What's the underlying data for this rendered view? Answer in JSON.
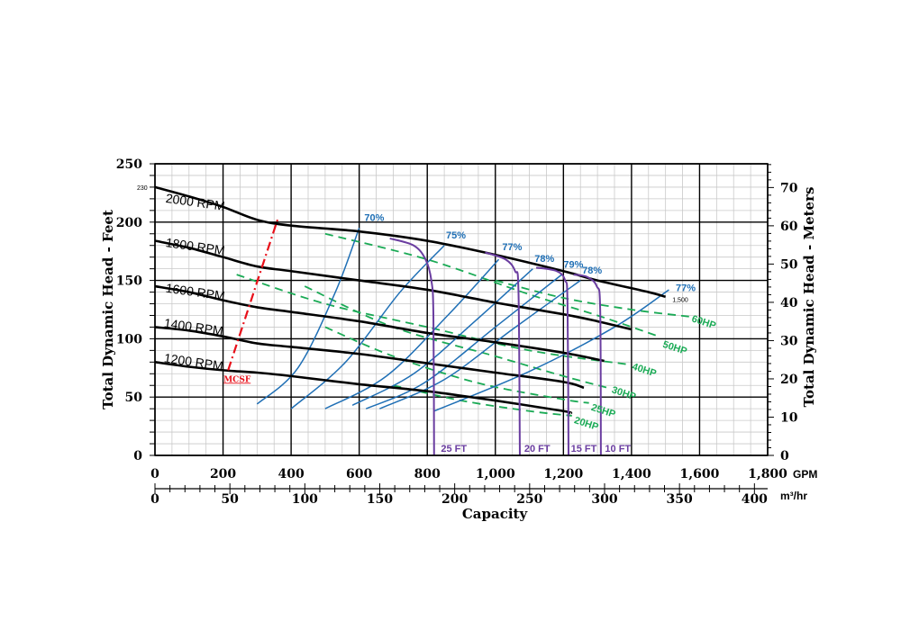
{
  "chart_data": {
    "type": "line",
    "xlabel": "Capacity",
    "x_unit": "GPM",
    "x2_unit": "m³/hr",
    "ylabel": "Total Dynamic Head - Feet",
    "y2label": "Total Dynamic Head - Meters",
    "xlim": [
      0,
      1800
    ],
    "ylim": [
      0,
      250
    ],
    "x_ticks": [
      0,
      200,
      400,
      600,
      800,
      1000,
      1200,
      1400,
      1600,
      1800
    ],
    "x_tick_labels": [
      "0",
      "200",
      "400",
      "600",
      "800",
      "1,000",
      "1,200",
      "1,400",
      "1,600",
      "1,800"
    ],
    "y_ticks": [
      0,
      50,
      100,
      150,
      200,
      250
    ],
    "x2_ticks": [
      0,
      50,
      100,
      150,
      200,
      250,
      300,
      350,
      400
    ],
    "y2_ticks": [
      0,
      10,
      20,
      30,
      40,
      50,
      60,
      70
    ],
    "grid": true,
    "colors": {
      "rpm": "#000000",
      "efficiency": "#1f6fb5",
      "hp": "#1aaa55",
      "npsh": "#6a3da0",
      "mcsf": "#e8101a"
    },
    "rpm_curves": [
      {
        "name": "2000 RPM",
        "label_at": [
          30,
          217
        ],
        "points": [
          [
            0,
            230
          ],
          [
            100,
            222
          ],
          [
            200,
            213
          ],
          [
            300,
            202
          ],
          [
            400,
            197
          ],
          [
            600,
            192
          ],
          [
            800,
            184
          ],
          [
            1000,
            172
          ],
          [
            1200,
            158
          ],
          [
            1300,
            150
          ],
          [
            1450,
            140
          ],
          [
            1500,
            136
          ]
        ]
      },
      {
        "name": "1800 RPM",
        "label_at": [
          30,
          179
        ],
        "points": [
          [
            0,
            184
          ],
          [
            100,
            178
          ],
          [
            200,
            170
          ],
          [
            300,
            162
          ],
          [
            400,
            158
          ],
          [
            600,
            150
          ],
          [
            800,
            142
          ],
          [
            1000,
            131
          ],
          [
            1200,
            121
          ],
          [
            1300,
            115
          ],
          [
            1400,
            108
          ]
        ]
      },
      {
        "name": "1600 RPM",
        "label_at": [
          30,
          140
        ],
        "points": [
          [
            0,
            145
          ],
          [
            100,
            140
          ],
          [
            200,
            133
          ],
          [
            300,
            127
          ],
          [
            400,
            123
          ],
          [
            600,
            115
          ],
          [
            800,
            105
          ],
          [
            1000,
            97
          ],
          [
            1200,
            88
          ],
          [
            1320,
            81
          ]
        ]
      },
      {
        "name": "1400 RPM",
        "label_at": [
          25,
          110
        ],
        "points": [
          [
            0,
            110
          ],
          [
            100,
            107
          ],
          [
            200,
            102
          ],
          [
            300,
            96
          ],
          [
            400,
            93
          ],
          [
            600,
            87
          ],
          [
            800,
            79
          ],
          [
            1000,
            71
          ],
          [
            1200,
            63
          ],
          [
            1260,
            58
          ]
        ]
      },
      {
        "name": "1200 RPM",
        "label_at": [
          25,
          80
        ],
        "points": [
          [
            0,
            80
          ],
          [
            100,
            76
          ],
          [
            200,
            73
          ],
          [
            300,
            71
          ],
          [
            400,
            68
          ],
          [
            600,
            61
          ],
          [
            800,
            55
          ],
          [
            1000,
            47
          ],
          [
            1200,
            38
          ],
          [
            1220,
            36
          ]
        ]
      }
    ],
    "efficiency_lines": [
      {
        "name": "70%",
        "label_at": [
          615,
          201
        ],
        "points": [
          [
            300,
            44
          ],
          [
            420,
            75
          ],
          [
            530,
            140
          ],
          [
            600,
            195
          ]
        ]
      },
      {
        "name": "75%",
        "label_at": [
          855,
          186
        ],
        "points": [
          [
            400,
            40
          ],
          [
            560,
            80
          ],
          [
            720,
            140
          ],
          [
            850,
            180
          ]
        ]
      },
      {
        "name": "77%",
        "label_at": [
          1020,
          176
        ],
        "points": [
          [
            500,
            40
          ],
          [
            680,
            68
          ],
          [
            860,
            120
          ],
          [
            1010,
            168
          ]
        ]
      },
      {
        "name": "78%",
        "label_at": [
          1115,
          166
        ],
        "points": [
          [
            580,
            43
          ],
          [
            760,
            70
          ],
          [
            940,
            115
          ],
          [
            1110,
            160
          ]
        ]
      },
      {
        "name": "79%",
        "label_at": [
          1200,
          161
        ],
        "points": [
          [
            620,
            40
          ],
          [
            790,
            62
          ],
          [
            1000,
            110
          ],
          [
            1195,
            155
          ]
        ]
      },
      {
        "name": "78%",
        "label_at": [
          1255,
          156
        ],
        "points": [
          [
            660,
            40
          ],
          [
            850,
            65
          ],
          [
            1050,
            108
          ],
          [
            1250,
            150
          ]
        ]
      },
      {
        "name": "77%",
        "label_at": [
          1530,
          141
        ],
        "points": [
          [
            820,
            38
          ],
          [
            1100,
            72
          ],
          [
            1350,
            110
          ],
          [
            1510,
            142
          ]
        ]
      }
    ],
    "hp_lines": [
      {
        "name": "60HP",
        "label_at": [
          1575,
          115
        ],
        "points": [
          [
            1000,
            150
          ],
          [
            1200,
            135
          ],
          [
            1400,
            125
          ],
          [
            1570,
            119
          ]
        ]
      },
      {
        "name": "50HP",
        "label_at": [
          1490,
          93
        ],
        "points": [
          [
            500,
            190
          ],
          [
            800,
            168
          ],
          [
            1100,
            138
          ],
          [
            1300,
            120
          ],
          [
            1480,
            102
          ]
        ]
      },
      {
        "name": "40HP",
        "label_at": [
          1400,
          74
        ],
        "points": [
          [
            240,
            155
          ],
          [
            500,
            130
          ],
          [
            800,
            110
          ],
          [
            1100,
            90
          ],
          [
            1390,
            78
          ]
        ]
      },
      {
        "name": "30HP",
        "label_at": [
          1340,
          54
        ],
        "points": [
          [
            440,
            145
          ],
          [
            700,
            110
          ],
          [
            1000,
            85
          ],
          [
            1200,
            68
          ],
          [
            1330,
            58
          ]
        ]
      },
      {
        "name": "25HP",
        "label_at": [
          1280,
          39
        ],
        "points": [
          [
            500,
            110
          ],
          [
            700,
            85
          ],
          [
            950,
            62
          ],
          [
            1200,
            48
          ],
          [
            1275,
            45
          ]
        ]
      },
      {
        "name": "20HP",
        "label_at": [
          1230,
          28
        ],
        "points": [
          [
            700,
            60
          ],
          [
            900,
            47
          ],
          [
            1100,
            38
          ],
          [
            1225,
            34
          ]
        ]
      }
    ],
    "npsh_curves": [
      {
        "name": "25 FT",
        "label_at": [
          840,
          3
        ],
        "points": [
          [
            690,
            186
          ],
          [
            760,
            180
          ],
          [
            795,
            168
          ],
          [
            812,
            150
          ],
          [
            818,
            120
          ],
          [
            820,
            0
          ]
        ]
      },
      {
        "name": "20 FT",
        "label_at": [
          1085,
          3
        ],
        "points": [
          [
            970,
            174
          ],
          [
            1030,
            168
          ],
          [
            1058,
            158
          ],
          [
            1068,
            140
          ],
          [
            1072,
            0
          ]
        ]
      },
      {
        "name": "15 FT",
        "label_at": [
          1222,
          3
        ],
        "points": [
          [
            1120,
            161
          ],
          [
            1180,
            158
          ],
          [
            1205,
            150
          ],
          [
            1212,
            130
          ],
          [
            1215,
            0
          ]
        ]
      },
      {
        "name": "10 FT",
        "label_at": [
          1322,
          3
        ],
        "points": [
          [
            1230,
            155
          ],
          [
            1270,
            153
          ],
          [
            1298,
            145
          ],
          [
            1308,
            125
          ],
          [
            1310,
            0
          ]
        ]
      }
    ],
    "mcsf_line": {
      "label": "MCSF",
      "points": [
        [
          215,
          73
        ],
        [
          360,
          202
        ]
      ]
    },
    "annotations": [
      {
        "text": "230",
        "at": [
          -40,
          230
        ]
      },
      {
        "text": "1,500",
        "at": [
          1520,
          134
        ]
      }
    ]
  }
}
